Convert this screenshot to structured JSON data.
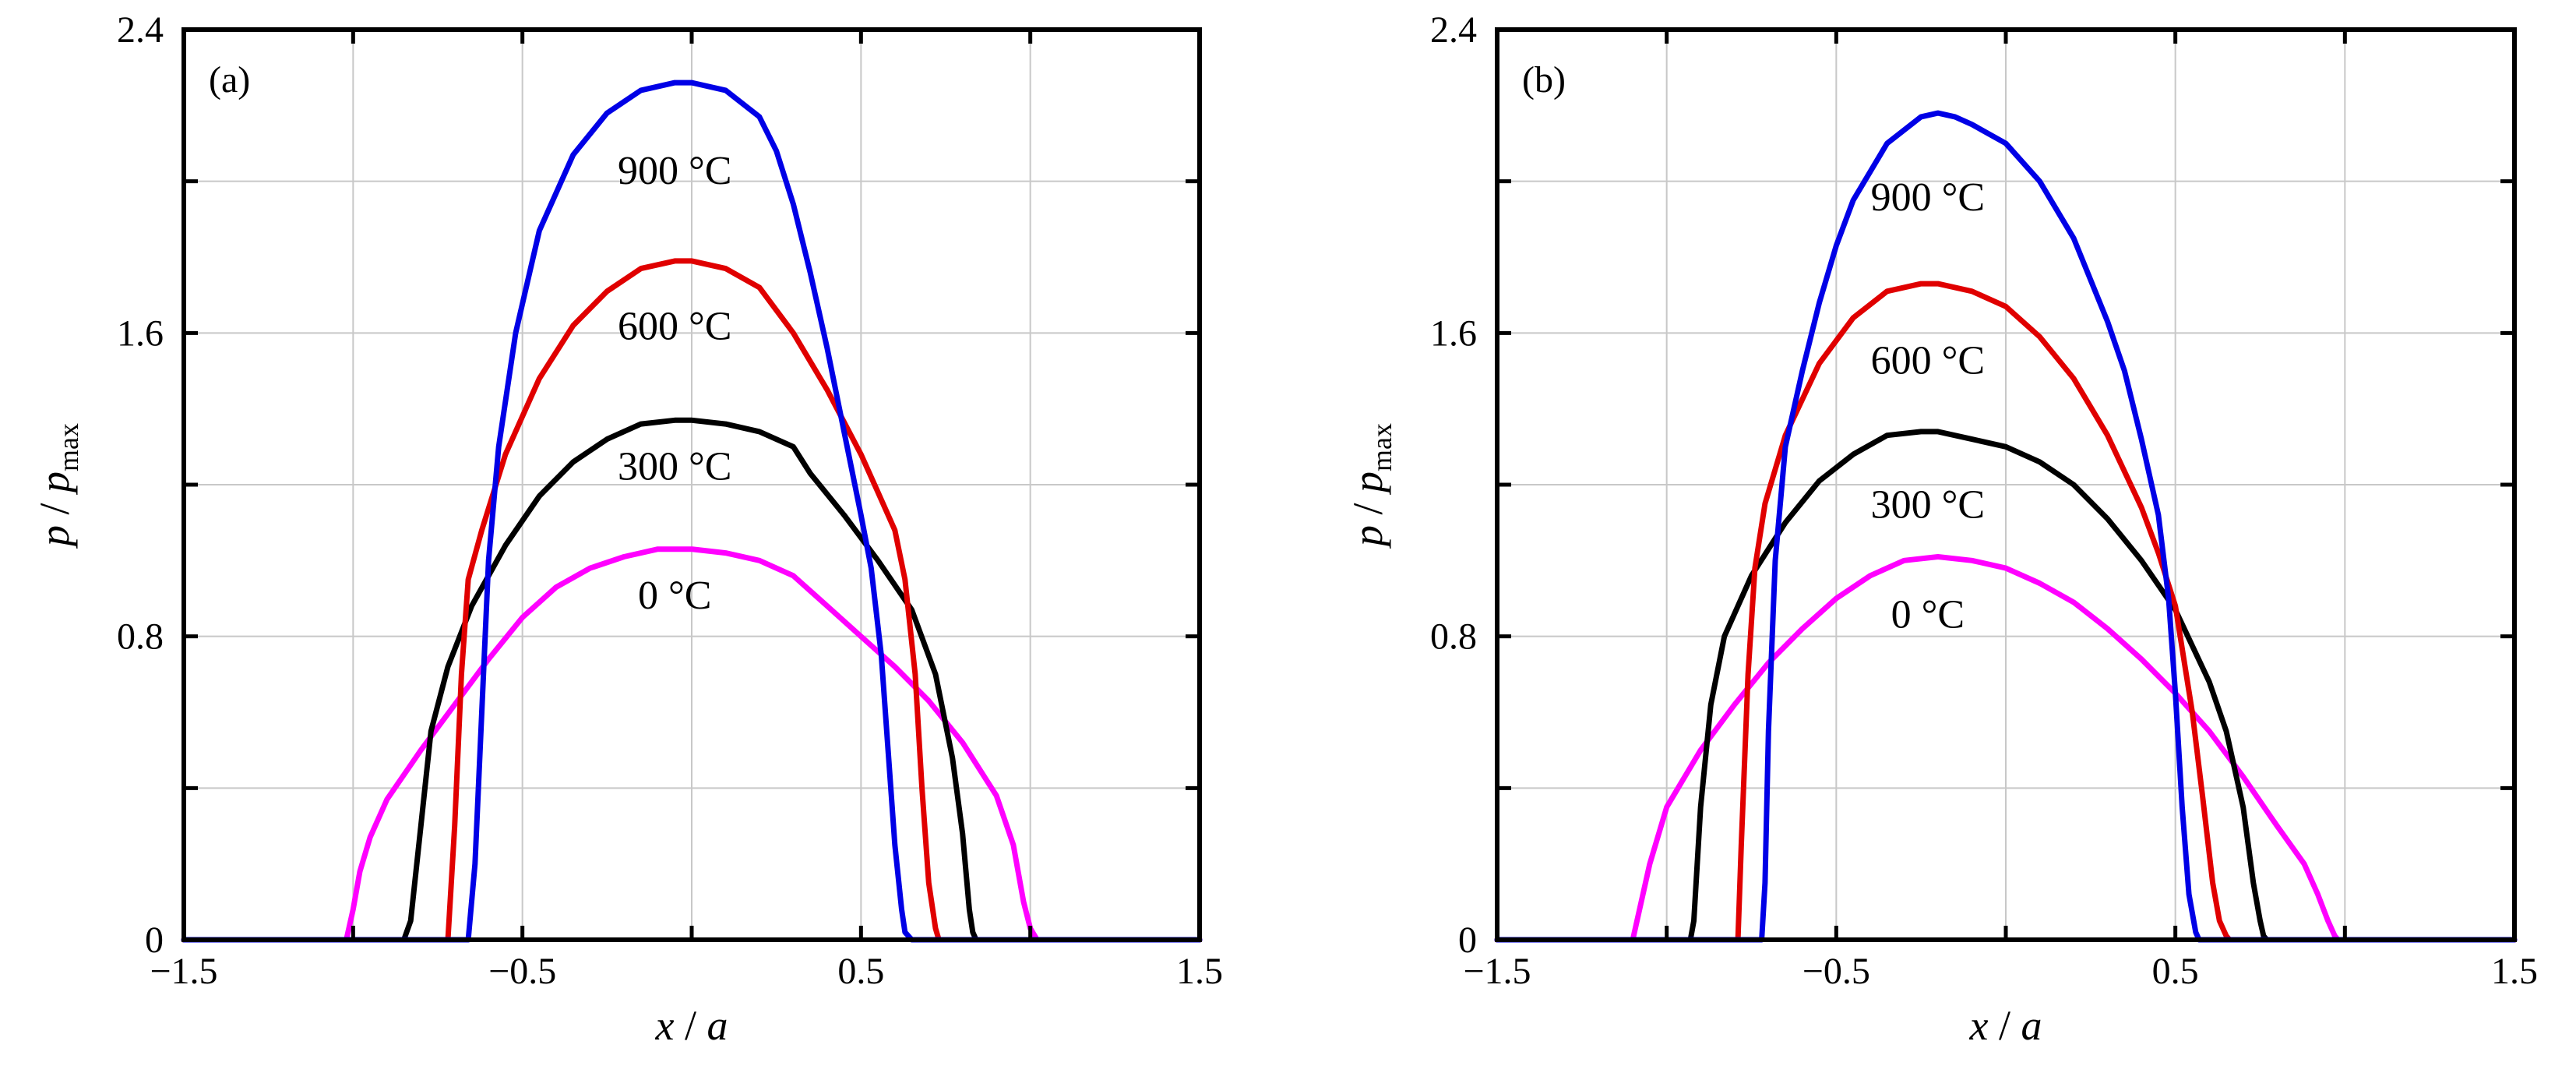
{
  "chart_data": [
    {
      "type": "line",
      "panel_label": "(a)",
      "xlabel": {
        "main": "x",
        "sep": " / ",
        "var": "a"
      },
      "ylabel": {
        "main": "p",
        "sep": " / ",
        "var": "p",
        "sub": "max"
      },
      "xlim": [
        -1.5,
        1.5
      ],
      "ylim": [
        0,
        2.4
      ],
      "xticks": [
        -1.5,
        -0.5,
        0.5,
        1.5
      ],
      "xtick_labels": [
        "−1.5",
        "−0.5",
        "0.5",
        "1.5"
      ],
      "yticks": [
        0,
        0.8,
        1.6,
        2.4
      ],
      "ytick_labels": [
        "0",
        "0.8",
        "1.6",
        "2.4"
      ],
      "grid": true,
      "series": [
        {
          "name": "0 °C",
          "color": "#ff00ff",
          "label_pos": [
            -0.05,
            0.91
          ],
          "x": [
            -1.5,
            -1.02,
            -1.0,
            -0.98,
            -0.95,
            -0.9,
            -0.8,
            -0.7,
            -0.6,
            -0.5,
            -0.4,
            -0.3,
            -0.2,
            -0.1,
            0.0,
            0.1,
            0.2,
            0.3,
            0.4,
            0.5,
            0.6,
            0.7,
            0.8,
            0.9,
            0.95,
            0.98,
            1.0,
            1.02,
            1.5
          ],
          "y": [
            0,
            0,
            0.08,
            0.18,
            0.27,
            0.37,
            0.5,
            0.62,
            0.74,
            0.85,
            0.93,
            0.98,
            1.01,
            1.03,
            1.03,
            1.02,
            1.0,
            0.96,
            0.88,
            0.8,
            0.72,
            0.63,
            0.52,
            0.38,
            0.25,
            0.1,
            0.03,
            0,
            0
          ]
        },
        {
          "name": "300 °C",
          "color": "#000000",
          "label_pos": [
            -0.05,
            1.25
          ],
          "x": [
            -1.5,
            -0.85,
            -0.83,
            -0.8,
            -0.77,
            -0.72,
            -0.65,
            -0.55,
            -0.45,
            -0.35,
            -0.25,
            -0.15,
            -0.05,
            0.0,
            0.1,
            0.2,
            0.3,
            0.35,
            0.45,
            0.55,
            0.65,
            0.72,
            0.77,
            0.8,
            0.82,
            0.83,
            0.84,
            1.5
          ],
          "y": [
            0,
            0,
            0.05,
            0.3,
            0.55,
            0.72,
            0.88,
            1.04,
            1.17,
            1.26,
            1.32,
            1.36,
            1.37,
            1.37,
            1.36,
            1.34,
            1.3,
            1.23,
            1.12,
            1.0,
            0.87,
            0.7,
            0.48,
            0.28,
            0.08,
            0.02,
            0,
            0
          ]
        },
        {
          "name": "600 °C",
          "color": "#e00000",
          "label_pos": [
            -0.05,
            1.62
          ],
          "x": [
            -1.5,
            -0.72,
            -0.7,
            -0.68,
            -0.66,
            -0.62,
            -0.55,
            -0.45,
            -0.35,
            -0.25,
            -0.15,
            -0.05,
            0.0,
            0.1,
            0.2,
            0.3,
            0.4,
            0.5,
            0.55,
            0.6,
            0.63,
            0.66,
            0.68,
            0.7,
            0.72,
            0.73,
            1.5
          ],
          "y": [
            0,
            0,
            0.3,
            0.7,
            0.95,
            1.08,
            1.28,
            1.48,
            1.62,
            1.71,
            1.77,
            1.79,
            1.79,
            1.77,
            1.72,
            1.6,
            1.45,
            1.28,
            1.18,
            1.08,
            0.95,
            0.7,
            0.4,
            0.15,
            0.03,
            0,
            0
          ]
        },
        {
          "name": "900 °C",
          "color": "#0000e6",
          "label_pos": [
            -0.05,
            2.03
          ],
          "x": [
            -1.5,
            -0.66,
            -0.64,
            -0.62,
            -0.6,
            -0.57,
            -0.52,
            -0.45,
            -0.35,
            -0.25,
            -0.15,
            -0.05,
            0.0,
            0.1,
            0.2,
            0.25,
            0.3,
            0.35,
            0.4,
            0.45,
            0.5,
            0.53,
            0.56,
            0.58,
            0.6,
            0.62,
            0.63,
            0.65,
            1.5
          ],
          "y": [
            0,
            0,
            0.2,
            0.6,
            1.0,
            1.3,
            1.6,
            1.87,
            2.07,
            2.18,
            2.24,
            2.26,
            2.26,
            2.24,
            2.17,
            2.08,
            1.94,
            1.76,
            1.56,
            1.34,
            1.12,
            0.98,
            0.75,
            0.5,
            0.25,
            0.08,
            0.02,
            0,
            0
          ]
        }
      ]
    },
    {
      "type": "line",
      "panel_label": "(b)",
      "xlabel": {
        "main": "x",
        "sep": " / ",
        "var": "a"
      },
      "ylabel": {
        "main": "p",
        "sep": " / ",
        "var": "p",
        "sub": "max"
      },
      "xlim": [
        -1.5,
        1.5
      ],
      "ylim": [
        0,
        2.4
      ],
      "xticks": [
        -1.5,
        -0.5,
        0.5,
        1.5
      ],
      "xtick_labels": [
        "−1.5",
        "−0.5",
        "0.5",
        "1.5"
      ],
      "yticks": [
        0,
        0.8,
        1.6,
        2.4
      ],
      "ytick_labels": [
        "0",
        "0.8",
        "1.6",
        "2.4"
      ],
      "grid": true,
      "series": [
        {
          "name": "0 °C",
          "color": "#ff00ff",
          "label_pos": [
            -0.23,
            0.86
          ],
          "x": [
            -1.5,
            -1.1,
            -1.08,
            -1.05,
            -1.0,
            -0.9,
            -0.8,
            -0.7,
            -0.6,
            -0.5,
            -0.4,
            -0.3,
            -0.2,
            -0.1,
            0.0,
            0.1,
            0.2,
            0.3,
            0.4,
            0.5,
            0.6,
            0.7,
            0.8,
            0.88,
            0.92,
            0.95,
            0.97,
            0.98,
            1.5
          ],
          "y": [
            0,
            0,
            0.08,
            0.2,
            0.35,
            0.5,
            0.62,
            0.73,
            0.82,
            0.9,
            0.96,
            1.0,
            1.01,
            1.0,
            0.98,
            0.94,
            0.89,
            0.82,
            0.74,
            0.65,
            0.55,
            0.43,
            0.3,
            0.2,
            0.12,
            0.05,
            0.01,
            0,
            0
          ]
        },
        {
          "name": "300 °C",
          "color": "#000000",
          "label_pos": [
            -0.23,
            1.15
          ],
          "x": [
            -1.5,
            -0.93,
            -0.92,
            -0.9,
            -0.87,
            -0.83,
            -0.75,
            -0.65,
            -0.55,
            -0.45,
            -0.35,
            -0.25,
            -0.2,
            -0.1,
            0.0,
            0.1,
            0.2,
            0.3,
            0.4,
            0.5,
            0.6,
            0.65,
            0.7,
            0.73,
            0.75,
            0.76,
            0.77,
            1.5
          ],
          "y": [
            0,
            0,
            0.05,
            0.35,
            0.62,
            0.8,
            0.96,
            1.1,
            1.21,
            1.28,
            1.33,
            1.34,
            1.34,
            1.32,
            1.3,
            1.26,
            1.2,
            1.11,
            1.0,
            0.87,
            0.68,
            0.55,
            0.35,
            0.15,
            0.05,
            0.01,
            0,
            0
          ]
        },
        {
          "name": "600 °C",
          "color": "#e00000",
          "label_pos": [
            -0.23,
            1.53
          ],
          "x": [
            -1.5,
            -0.79,
            -0.78,
            -0.76,
            -0.74,
            -0.71,
            -0.65,
            -0.55,
            -0.45,
            -0.35,
            -0.25,
            -0.2,
            -0.1,
            0.0,
            0.1,
            0.2,
            0.3,
            0.4,
            0.45,
            0.5,
            0.55,
            0.58,
            0.61,
            0.63,
            0.65,
            0.66,
            1.5
          ],
          "y": [
            0,
            0,
            0.25,
            0.7,
            0.98,
            1.15,
            1.33,
            1.52,
            1.64,
            1.71,
            1.73,
            1.73,
            1.71,
            1.67,
            1.59,
            1.48,
            1.33,
            1.14,
            1.02,
            0.88,
            0.6,
            0.38,
            0.15,
            0.05,
            0.01,
            0,
            0
          ]
        },
        {
          "name": "900 °C",
          "color": "#0000e6",
          "label_pos": [
            -0.23,
            1.96
          ],
          "x": [
            -1.5,
            -0.72,
            -0.71,
            -0.7,
            -0.68,
            -0.65,
            -0.6,
            -0.55,
            -0.5,
            -0.45,
            -0.35,
            -0.25,
            -0.2,
            -0.15,
            -0.1,
            0.0,
            0.1,
            0.2,
            0.3,
            0.35,
            0.4,
            0.45,
            0.48,
            0.5,
            0.52,
            0.54,
            0.56,
            0.57,
            1.5
          ],
          "y": [
            0,
            0,
            0.15,
            0.55,
            1.0,
            1.3,
            1.5,
            1.68,
            1.83,
            1.95,
            2.1,
            2.17,
            2.18,
            2.17,
            2.15,
            2.1,
            2.0,
            1.85,
            1.63,
            1.5,
            1.32,
            1.12,
            0.9,
            0.65,
            0.35,
            0.12,
            0.02,
            0,
            0
          ]
        }
      ]
    }
  ]
}
